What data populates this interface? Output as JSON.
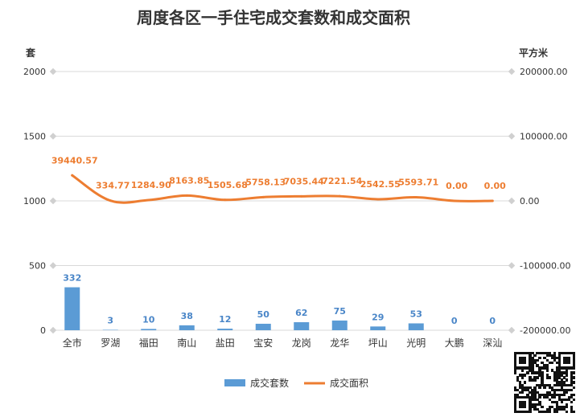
{
  "chart_data": {
    "type": "bar",
    "title": "周度各区一手住宅成交套数和成交面积",
    "ylabel_left": "套",
    "ylabel_right": "平方米",
    "ylim_left": [
      0,
      2000
    ],
    "yticks_left": [
      "0",
      "500",
      "1000",
      "1500",
      "2000"
    ],
    "ylim_right": [
      -200000,
      200000
    ],
    "yticks_right": [
      "-200000.00",
      "-100000.00",
      "0.00",
      "100000.00",
      "200000.00"
    ],
    "categories": [
      "全市",
      "罗湖",
      "福田",
      "南山",
      "盐田",
      "宝安",
      "龙岗",
      "龙华",
      "坪山",
      "光明",
      "大鹏",
      "深汕"
    ],
    "series": [
      {
        "name": "成交套数",
        "type": "bar",
        "axis": "left",
        "color": "#5b9bd5",
        "values": [
          332,
          3,
          10,
          38,
          12,
          50,
          62,
          75,
          29,
          53,
          0,
          0
        ],
        "labels": [
          "332",
          "3",
          "10",
          "38",
          "12",
          "50",
          "62",
          "75",
          "29",
          "53",
          "0",
          "0"
        ]
      },
      {
        "name": "成交面积",
        "type": "line",
        "axis": "right",
        "color": "#ed7d31",
        "values": [
          39440.57,
          334.77,
          1284.9,
          8163.85,
          1505.68,
          5758.13,
          7035.44,
          7221.54,
          2542.55,
          5593.71,
          0.0,
          0.0
        ],
        "labels": [
          "39440.57",
          "334.77",
          "1284.90",
          "8163.85",
          "1505.68",
          "5758.13",
          "7035.44",
          "7221.54",
          "2542.55",
          "5593.71",
          "0.00",
          "0.00"
        ]
      }
    ],
    "grid": true,
    "legend_position": "bottom"
  },
  "qr_code": {
    "icon": "qr-code-icon"
  }
}
